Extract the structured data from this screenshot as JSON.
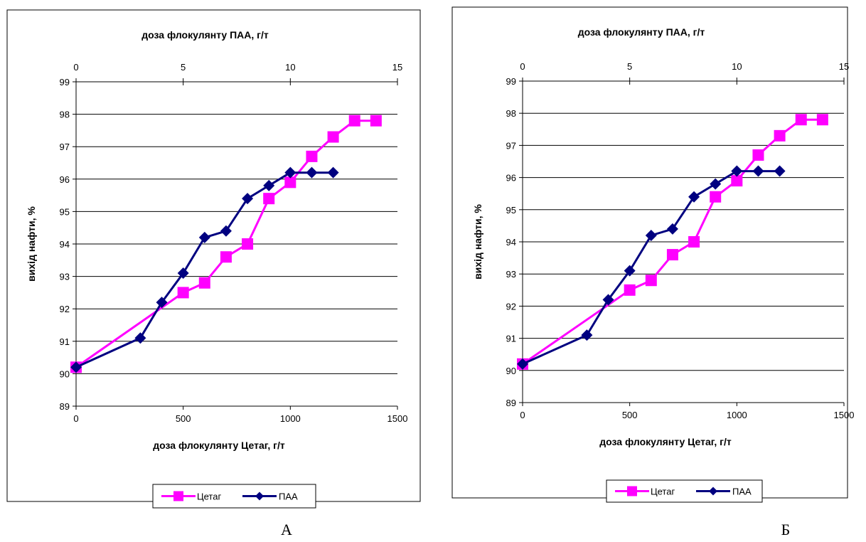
{
  "chart_data": [
    {
      "type": "line",
      "panel_label": "А",
      "title": "",
      "xlabel": "доза флокулянту Цетаг,  г/т",
      "x2label": "доза флокулянту ПАА,  г/т",
      "ylabel": "вихід нафти, %",
      "xlim": [
        0,
        1500
      ],
      "x2lim": [
        0,
        15
      ],
      "ylim": [
        89,
        99
      ],
      "x_ticks": [
        0,
        500,
        1000,
        1500
      ],
      "x2_ticks": [
        0,
        5,
        10,
        15
      ],
      "y_ticks": [
        89,
        90,
        91,
        92,
        93,
        94,
        95,
        96,
        97,
        98,
        99
      ],
      "grid": "horizontal",
      "legend_position": "bottom",
      "series": [
        {
          "name": "Цетаг",
          "axis": "bottom",
          "color": "#ff00ff",
          "marker": "square",
          "x": [
            0,
            500,
            600,
            700,
            800,
            900,
            1000,
            1100,
            1200,
            1300,
            1400
          ],
          "y": [
            90.2,
            92.5,
            92.8,
            93.6,
            94.0,
            95.4,
            95.9,
            96.7,
            97.3,
            97.8,
            97.8
          ]
        },
        {
          "name": "ПАА",
          "axis": "top",
          "color": "#000080",
          "marker": "diamond",
          "x": [
            0,
            3,
            4,
            5,
            6,
            7,
            8,
            9,
            10,
            11,
            12
          ],
          "y": [
            90.2,
            91.1,
            92.2,
            93.1,
            94.2,
            94.4,
            95.4,
            95.8,
            96.2,
            96.2,
            96.2
          ]
        }
      ]
    },
    {
      "type": "line",
      "panel_label": "Б",
      "title": "",
      "xlabel": "доза флокулянту Цетаг,  г/т",
      "x2label": "доза флокулянту ПАА,  г/т",
      "ylabel": "вихід нафти, %",
      "xlim": [
        0,
        1500
      ],
      "x2lim": [
        0,
        15
      ],
      "ylim": [
        89,
        99
      ],
      "x_ticks": [
        0,
        500,
        1000,
        1500
      ],
      "x2_ticks": [
        0,
        5,
        10,
        15
      ],
      "y_ticks": [
        89,
        90,
        91,
        92,
        93,
        94,
        95,
        96,
        97,
        98,
        99
      ],
      "grid": "horizontal",
      "legend_position": "bottom",
      "series": [
        {
          "name": "Цетаг",
          "axis": "bottom",
          "color": "#ff00ff",
          "marker": "square",
          "x": [
            0,
            500,
            600,
            700,
            800,
            900,
            1000,
            1100,
            1200,
            1300,
            1400
          ],
          "y": [
            90.2,
            92.5,
            92.8,
            93.6,
            94.0,
            95.4,
            95.9,
            96.7,
            97.3,
            97.8,
            97.8
          ]
        },
        {
          "name": "ПАА",
          "axis": "top",
          "color": "#000080",
          "marker": "diamond",
          "x": [
            0,
            3,
            4,
            5,
            6,
            7,
            8,
            9,
            10,
            11,
            12
          ],
          "y": [
            90.2,
            91.1,
            92.2,
            93.1,
            94.2,
            94.4,
            95.4,
            95.8,
            96.2,
            96.2,
            96.2
          ]
        }
      ]
    }
  ]
}
